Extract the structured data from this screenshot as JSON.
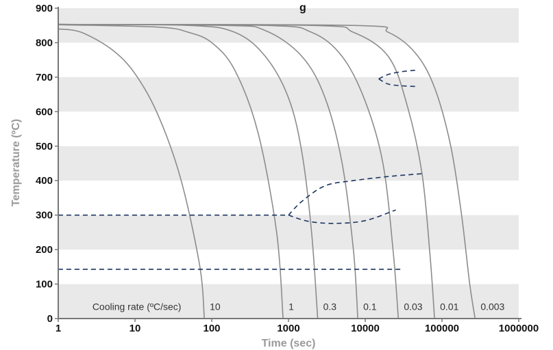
{
  "chart_data": {
    "type": "line",
    "title": "g",
    "xlabel": "Time (sec)",
    "ylabel": "Temperature (ºC)",
    "xscale": "log",
    "xlim": [
      1,
      1000000
    ],
    "ylim": [
      0,
      900
    ],
    "grid": "alternating horizontal bands",
    "x_tick_labels": [
      "1",
      "10",
      "100",
      "1000",
      "10000",
      "100000",
      "1000000"
    ],
    "y_tick_labels": [
      "0",
      "100",
      "200",
      "300",
      "400",
      "500",
      "600",
      "700",
      "800",
      "900"
    ],
    "cooling_rate_caption": "Cooling rate (ºC/sec)",
    "series": [
      {
        "name": "10",
        "points": [
          [
            1,
            840
          ],
          [
            2,
            830
          ],
          [
            5,
            780
          ],
          [
            10,
            710
          ],
          [
            20,
            590
          ],
          [
            40,
            400
          ],
          [
            70,
            150
          ],
          [
            80,
            0
          ]
        ]
      },
      {
        "name": "1",
        "points": [
          [
            1,
            852
          ],
          [
            20,
            845
          ],
          [
            50,
            830
          ],
          [
            100,
            800
          ],
          [
            200,
            720
          ],
          [
            400,
            540
          ],
          [
            700,
            250
          ],
          [
            850,
            0
          ]
        ]
      },
      {
        "name": "0.3",
        "points": [
          [
            1,
            853
          ],
          [
            50,
            850
          ],
          [
            200,
            830
          ],
          [
            500,
            760
          ],
          [
            1000,
            640
          ],
          [
            1500,
            480
          ],
          [
            2000,
            250
          ],
          [
            2400,
            0
          ]
        ]
      },
      {
        "name": "0.1",
        "points": [
          [
            1,
            853
          ],
          [
            150,
            850
          ],
          [
            500,
            835
          ],
          [
            1500,
            760
          ],
          [
            3000,
            640
          ],
          [
            5000,
            450
          ],
          [
            7000,
            200
          ],
          [
            8000,
            0
          ]
        ]
      },
      {
        "name": "0.03",
        "points": [
          [
            1,
            853
          ],
          [
            500,
            850
          ],
          [
            2000,
            830
          ],
          [
            5000,
            760
          ],
          [
            10000,
            630
          ],
          [
            17000,
            450
          ],
          [
            23000,
            200
          ],
          [
            27000,
            0
          ]
        ]
      },
      {
        "name": "0.01",
        "points": [
          [
            1,
            853
          ],
          [
            2000,
            850
          ],
          [
            7000,
            830
          ],
          [
            20000,
            760
          ],
          [
            35000,
            620
          ],
          [
            55000,
            420
          ],
          [
            70000,
            180
          ],
          [
            80000,
            0
          ]
        ]
      },
      {
        "name": "0.003",
        "points": [
          [
            1,
            853
          ],
          [
            7000,
            850
          ],
          [
            20000,
            830
          ],
          [
            45000,
            770
          ],
          [
            80000,
            670
          ],
          [
            130000,
            500
          ],
          [
            180000,
            300
          ],
          [
            230000,
            100
          ],
          [
            270000,
            0
          ]
        ]
      }
    ],
    "transformation_curves": [
      {
        "points": [
          [
            15000,
            695
          ],
          [
            20000,
            708
          ],
          [
            30000,
            716
          ],
          [
            45000,
            720
          ]
        ]
      },
      {
        "points": [
          [
            15000,
            695
          ],
          [
            20000,
            680
          ],
          [
            30000,
            675
          ],
          [
            45000,
            673
          ]
        ]
      },
      {
        "points": [
          [
            1,
            300
          ],
          [
            1000,
            300
          ]
        ]
      },
      {
        "points": [
          [
            1000,
            300
          ],
          [
            1500,
            340
          ],
          [
            3000,
            385
          ],
          [
            7000,
            400
          ],
          [
            20000,
            412
          ],
          [
            55000,
            420
          ]
        ]
      },
      {
        "points": [
          [
            1000,
            300
          ],
          [
            1800,
            282
          ],
          [
            4000,
            276
          ],
          [
            10000,
            284
          ],
          [
            25000,
            315
          ]
        ]
      },
      {
        "points": [
          [
            1,
            143
          ],
          [
            30000,
            143
          ]
        ]
      }
    ]
  }
}
